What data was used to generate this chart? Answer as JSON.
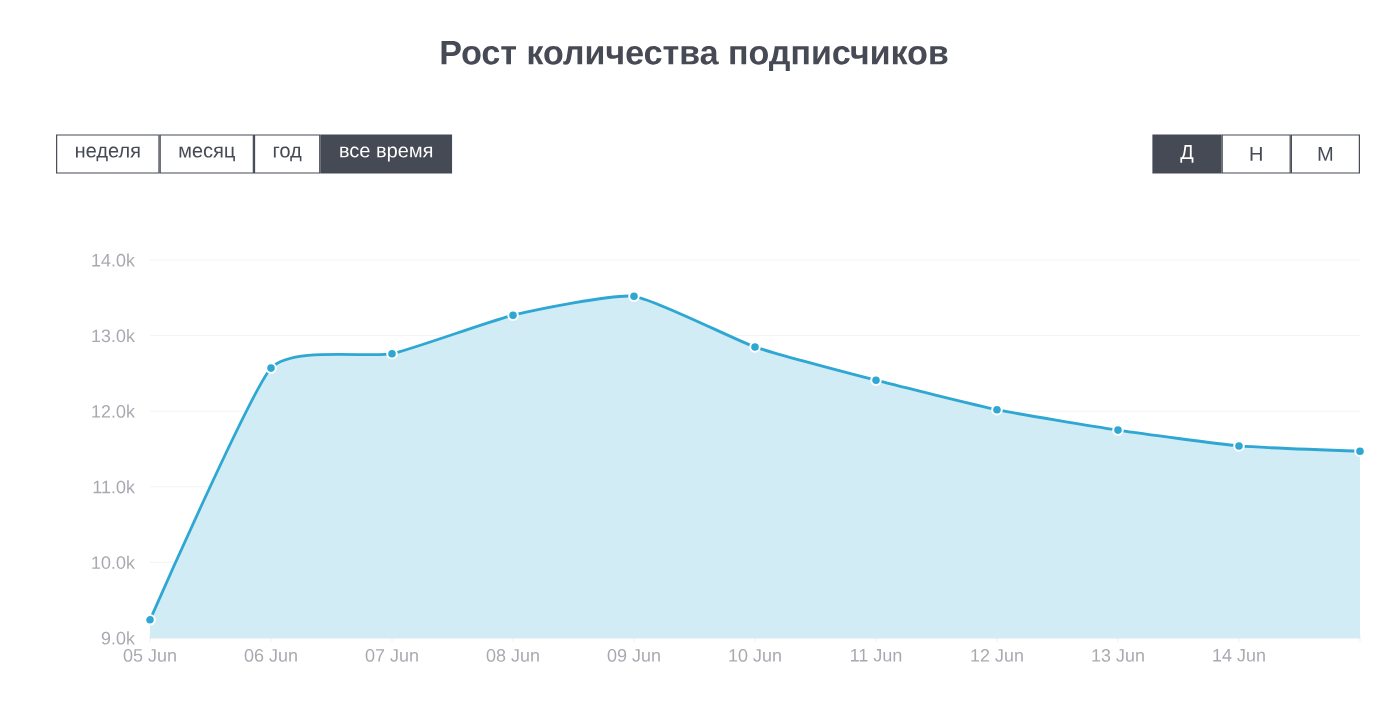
{
  "chart_data": {
    "type": "area",
    "title": "Рост количества подписчиков",
    "categories": [
      "05 Jun",
      "06 Jun",
      "07 Jun",
      "08 Jun",
      "09 Jun",
      "10 Jun",
      "11 Jun",
      "12 Jun",
      "13 Jun",
      "14 Jun",
      null
    ],
    "values": [
      9240,
      12570,
      12760,
      13270,
      13520,
      12850,
      12410,
      12020,
      11750,
      11540,
      11470
    ],
    "color": "#2ea7d3",
    "ylim": [
      9000,
      14000
    ],
    "yticks": [
      {
        "value": 9000,
        "label": "9.0k"
      },
      {
        "value": 10000,
        "label": "10.0k"
      },
      {
        "value": 11000,
        "label": "11.0k"
      },
      {
        "value": 12000,
        "label": "12.0k"
      },
      {
        "value": 13000,
        "label": "13.0k"
      },
      {
        "value": 14000,
        "label": "14.0k"
      }
    ],
    "grid": "y",
    "marker": "circle",
    "line_style": "solid",
    "annotations": [
      "неделя",
      "месяц",
      "год",
      "все время",
      "Д",
      "Н",
      "М"
    ]
  }
}
